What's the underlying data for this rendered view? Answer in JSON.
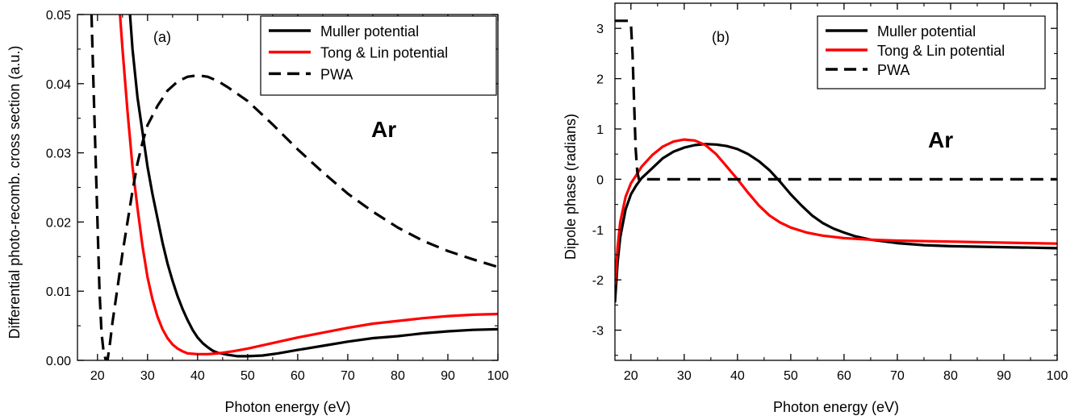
{
  "chart_data": [
    {
      "type": "line",
      "panel_label": "(a)",
      "annotation": "Ar",
      "xlabel": "Photon energy (eV)",
      "ylabel": "Differential photo-recomb. cross section (a.u.)",
      "xlim": [
        16,
        100
      ],
      "ylim": [
        0,
        0.05
      ],
      "xticks": [
        20,
        30,
        40,
        50,
        60,
        70,
        80,
        90,
        100
      ],
      "xtick_labels": [
        "20",
        "30",
        "40",
        "50",
        "60",
        "70",
        "80",
        "90",
        "100"
      ],
      "yticks": [
        0,
        0.01,
        0.02,
        0.03,
        0.04,
        0.05
      ],
      "ytick_labels": [
        "0.00",
        "0.01",
        "0.02",
        "0.03",
        "0.04",
        "0.05"
      ],
      "legend_position": "top-right",
      "series": [
        {
          "name": "Muller potential",
          "color": "#000000",
          "dash": "solid",
          "points": [
            [
              26.5,
              0.05
            ],
            [
              27,
              0.045
            ],
            [
              28,
              0.038
            ],
            [
              29,
              0.033
            ],
            [
              30,
              0.028
            ],
            [
              31,
              0.024
            ],
            [
              32,
              0.0205
            ],
            [
              33,
              0.017
            ],
            [
              34,
              0.014
            ],
            [
              35,
              0.0115
            ],
            [
              36,
              0.0093
            ],
            [
              37,
              0.0074
            ],
            [
              38,
              0.0058
            ],
            [
              39,
              0.0044
            ],
            [
              40,
              0.0033
            ],
            [
              41,
              0.0025
            ],
            [
              42,
              0.0019
            ],
            [
              43,
              0.0014
            ],
            [
              44,
              0.0011
            ],
            [
              46,
              0.0008
            ],
            [
              48,
              0.0006
            ],
            [
              50,
              0.0006
            ],
            [
              53,
              0.0007
            ],
            [
              56,
              0.001
            ],
            [
              60,
              0.0015
            ],
            [
              65,
              0.0021
            ],
            [
              70,
              0.0027
            ],
            [
              75,
              0.0032
            ],
            [
              80,
              0.0035
            ],
            [
              85,
              0.0039
            ],
            [
              90,
              0.0042
            ],
            [
              95,
              0.0044
            ],
            [
              100,
              0.0045
            ]
          ]
        },
        {
          "name": "Tong & Lin potential",
          "color": "#ff0000",
          "dash": "solid",
          "points": [
            [
              24.5,
              0.05
            ],
            [
              25,
              0.045
            ],
            [
              26,
              0.036
            ],
            [
              27,
              0.028
            ],
            [
              28,
              0.022
            ],
            [
              29,
              0.0165
            ],
            [
              30,
              0.012
            ],
            [
              31,
              0.0088
            ],
            [
              32,
              0.0063
            ],
            [
              33,
              0.0045
            ],
            [
              34,
              0.0032
            ],
            [
              35,
              0.0023
            ],
            [
              36,
              0.0017
            ],
            [
              37,
              0.0013
            ],
            [
              38,
              0.001
            ],
            [
              40,
              0.0009
            ],
            [
              42,
              0.0009
            ],
            [
              44,
              0.001
            ],
            [
              47,
              0.0013
            ],
            [
              50,
              0.0017
            ],
            [
              55,
              0.0025
            ],
            [
              60,
              0.0033
            ],
            [
              65,
              0.004
            ],
            [
              70,
              0.0047
            ],
            [
              75,
              0.0053
            ],
            [
              80,
              0.0057
            ],
            [
              85,
              0.0061
            ],
            [
              90,
              0.0064
            ],
            [
              95,
              0.0066
            ],
            [
              100,
              0.0067
            ]
          ]
        },
        {
          "name": "PWA",
          "color": "#000000",
          "dash": "dashed",
          "points": [
            [
              18.8,
              0.05
            ],
            [
              19.2,
              0.04
            ],
            [
              19.6,
              0.03
            ],
            [
              20,
              0.02
            ],
            [
              20.4,
              0.01
            ],
            [
              20.8,
              0.004
            ],
            [
              21.2,
              0.0013
            ],
            [
              21.6,
              0.0002
            ],
            [
              22,
              0
            ],
            [
              22.5,
              0.0025
            ],
            [
              23,
              0.0055
            ],
            [
              24,
              0.0105
            ],
            [
              25,
              0.0155
            ],
            [
              26,
              0.02
            ],
            [
              27,
              0.0245
            ],
            [
              28,
              0.0285
            ],
            [
              29,
              0.0315
            ],
            [
              30,
              0.034
            ],
            [
              32,
              0.0368
            ],
            [
              34,
              0.039
            ],
            [
              36,
              0.0403
            ],
            [
              38,
              0.041
            ],
            [
              40,
              0.0412
            ],
            [
              42,
              0.041
            ],
            [
              44,
              0.0404
            ],
            [
              46,
              0.0395
            ],
            [
              48,
              0.0385
            ],
            [
              50,
              0.0375
            ],
            [
              55,
              0.0341
            ],
            [
              60,
              0.0305
            ],
            [
              65,
              0.0272
            ],
            [
              70,
              0.0241
            ],
            [
              75,
              0.0215
            ],
            [
              80,
              0.0192
            ],
            [
              85,
              0.0173
            ],
            [
              90,
              0.0158
            ],
            [
              95,
              0.0146
            ],
            [
              100,
              0.0135
            ]
          ]
        }
      ]
    },
    {
      "type": "line",
      "panel_label": "(b)",
      "annotation": "Ar",
      "xlabel": "Photon energy (eV)",
      "ylabel": "Dipole phase (radians)",
      "xlim": [
        17,
        100
      ],
      "ylim": [
        -3.6,
        3.5
      ],
      "xticks": [
        20,
        30,
        40,
        50,
        60,
        70,
        80,
        90,
        100
      ],
      "xtick_labels": [
        "20",
        "30",
        "40",
        "50",
        "60",
        "70",
        "80",
        "90",
        "100"
      ],
      "yticks": [
        -3,
        -2,
        -1,
        0,
        1,
        2,
        3
      ],
      "ytick_labels": [
        "-3",
        "-2",
        "-1",
        "0",
        "1",
        "2",
        "3"
      ],
      "legend_position": "top-right",
      "series": [
        {
          "name": "Muller potential",
          "color": "#000000",
          "dash": "solid",
          "points": [
            [
              17,
              -2.45
            ],
            [
              17.5,
              -1.65
            ],
            [
              18,
              -1.15
            ],
            [
              19,
              -0.6
            ],
            [
              20,
              -0.3
            ],
            [
              21,
              -0.12
            ],
            [
              22,
              0.02
            ],
            [
              24,
              0.22
            ],
            [
              26,
              0.42
            ],
            [
              28,
              0.55
            ],
            [
              30,
              0.63
            ],
            [
              32,
              0.68
            ],
            [
              34,
              0.7
            ],
            [
              36,
              0.69
            ],
            [
              38,
              0.66
            ],
            [
              40,
              0.6
            ],
            [
              42,
              0.5
            ],
            [
              44,
              0.36
            ],
            [
              46,
              0.18
            ],
            [
              48,
              -0.05
            ],
            [
              50,
              -0.3
            ],
            [
              52,
              -0.52
            ],
            [
              54,
              -0.72
            ],
            [
              56,
              -0.87
            ],
            [
              58,
              -0.98
            ],
            [
              60,
              -1.06
            ],
            [
              62,
              -1.13
            ],
            [
              65,
              -1.2
            ],
            [
              70,
              -1.27
            ],
            [
              75,
              -1.31
            ],
            [
              80,
              -1.33
            ],
            [
              85,
              -1.34
            ],
            [
              90,
              -1.35
            ],
            [
              95,
              -1.36
            ],
            [
              100,
              -1.37
            ]
          ]
        },
        {
          "name": "Tong & Lin potential",
          "color": "#ff0000",
          "dash": "solid",
          "points": [
            [
              17,
              -2.1
            ],
            [
              17.5,
              -1.35
            ],
            [
              18,
              -0.85
            ],
            [
              19,
              -0.35
            ],
            [
              20,
              -0.08
            ],
            [
              21,
              0.08
            ],
            [
              22,
              0.25
            ],
            [
              24,
              0.48
            ],
            [
              26,
              0.65
            ],
            [
              28,
              0.75
            ],
            [
              30,
              0.79
            ],
            [
              32,
              0.77
            ],
            [
              34,
              0.68
            ],
            [
              36,
              0.5
            ],
            [
              38,
              0.25
            ],
            [
              40,
              0
            ],
            [
              42,
              -0.27
            ],
            [
              44,
              -0.52
            ],
            [
              46,
              -0.72
            ],
            [
              48,
              -0.86
            ],
            [
              50,
              -0.96
            ],
            [
              53,
              -1.06
            ],
            [
              56,
              -1.12
            ],
            [
              60,
              -1.17
            ],
            [
              65,
              -1.2
            ],
            [
              70,
              -1.22
            ],
            [
              80,
              -1.24
            ],
            [
              90,
              -1.26
            ],
            [
              100,
              -1.28
            ]
          ]
        },
        {
          "name": "PWA",
          "color": "#000000",
          "dash": "dashed",
          "points": [
            [
              17,
              3.15
            ],
            [
              19.5,
              3.15
            ],
            [
              20,
              3.1
            ],
            [
              20.3,
              2.5
            ],
            [
              20.6,
              1.5
            ],
            [
              20.9,
              0.6
            ],
            [
              21.2,
              0.15
            ],
            [
              21.5,
              0
            ],
            [
              100,
              0
            ]
          ]
        }
      ]
    }
  ]
}
